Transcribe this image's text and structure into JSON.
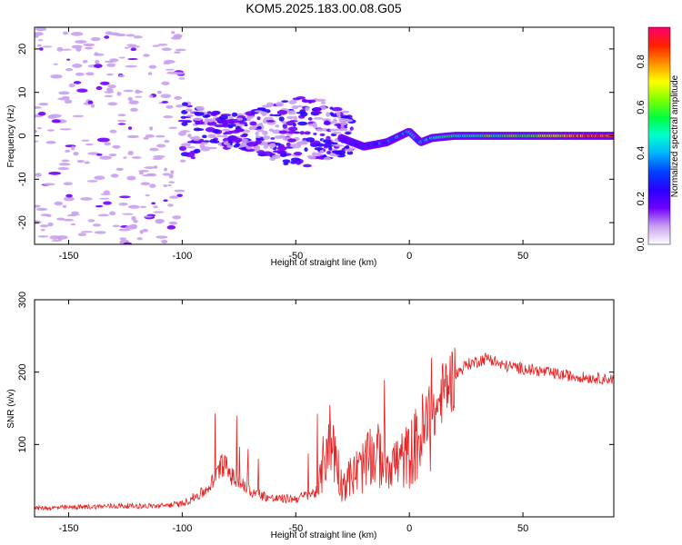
{
  "title": "KOM5.2025.183.00.08.G05",
  "chart_data": [
    {
      "type": "heatmap",
      "title": "KOM5.2025.183.00.08.G05",
      "xlabel": "Height of straight line (km)",
      "ylabel": "Frequency (Hz)",
      "xlim": [
        -165,
        90
      ],
      "ylim": [
        -25,
        25
      ],
      "x_ticks": [
        -150,
        -100,
        -50,
        0,
        50
      ],
      "y_ticks": [
        -20,
        -10,
        0,
        10,
        20
      ],
      "colorbar": {
        "label": "Normalized spectral amplitude",
        "range": [
          0,
          0.95
        ],
        "ticks": [
          0.0,
          0.2,
          0.4,
          0.6,
          0.8
        ],
        "colors": [
          "#ffffff",
          "#c9a0f0",
          "#7000ff",
          "#2a00ff",
          "#0040ff",
          "#00b0ff",
          "#00ffd0",
          "#00ff40",
          "#80ff00",
          "#ffff00",
          "#ff9000",
          "#ff2000",
          "#ff0070"
        ]
      },
      "ridge": [
        {
          "x": -30,
          "f": -0.5,
          "amp": 0.2
        },
        {
          "x": -20,
          "f": -2.5,
          "amp": 0.25
        },
        {
          "x": -10,
          "f": -1.5,
          "amp": 0.3
        },
        {
          "x": -2,
          "f": 0.5,
          "amp": 0.4
        },
        {
          "x": 0,
          "f": 1.0,
          "amp": 0.45
        },
        {
          "x": 5,
          "f": -1.5,
          "amp": 0.35
        },
        {
          "x": 10,
          "f": -0.5,
          "amp": 0.4
        },
        {
          "x": 20,
          "f": 0.0,
          "amp": 0.5
        },
        {
          "x": 40,
          "f": 0.0,
          "amp": 0.55
        },
        {
          "x": 60,
          "f": 0.0,
          "amp": 0.65
        },
        {
          "x": 75,
          "f": 0.0,
          "amp": 0.8
        },
        {
          "x": 90,
          "f": 0.0,
          "amp": 0.85
        }
      ]
    },
    {
      "type": "line",
      "xlabel": "Height of straight line (km)",
      "ylabel": "SNR (v/v)",
      "xlim": [
        -165,
        90
      ],
      "ylim": [
        0,
        300
      ],
      "x_ticks": [
        -150,
        -100,
        -50,
        0,
        50
      ],
      "y_ticks": [
        100,
        200,
        300
      ],
      "series_color": "#e82020",
      "x": [
        -165,
        -150,
        -130,
        -110,
        -100,
        -90,
        -85,
        -82,
        -78,
        -70,
        -60,
        -50,
        -40,
        -36,
        -33,
        -30,
        -20,
        -15,
        -10,
        -5,
        0,
        5,
        10,
        15,
        20,
        25,
        30,
        35,
        40,
        50,
        60,
        70,
        80,
        90
      ],
      "y": [
        12,
        13,
        15,
        15,
        18,
        35,
        55,
        75,
        55,
        35,
        25,
        25,
        35,
        110,
        95,
        45,
        70,
        85,
        80,
        75,
        85,
        110,
        130,
        175,
        195,
        210,
        215,
        220,
        210,
        205,
        200,
        195,
        192,
        190
      ]
    }
  ]
}
